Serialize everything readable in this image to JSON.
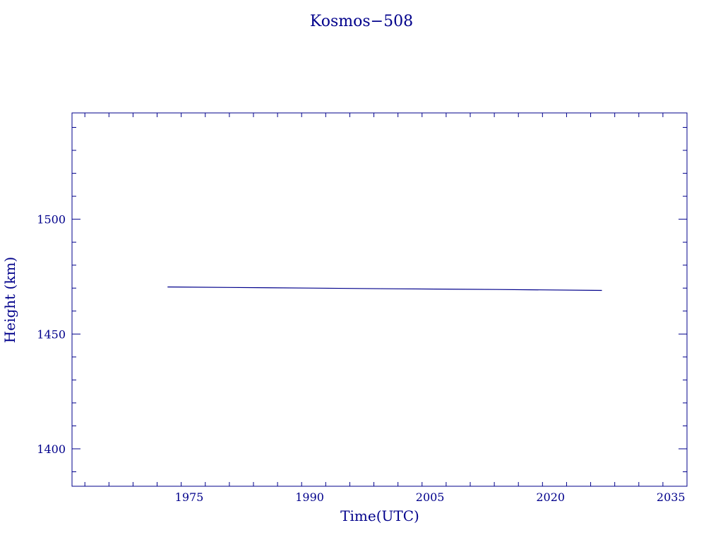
{
  "chart_data": {
    "type": "line",
    "title": "Kosmos−508",
    "xlabel": "Time(UTC)",
    "ylabel": "Height (km)",
    "xlim": [
      1960.4,
      2037.0
    ],
    "ylim": [
      1383.7,
      1546.3
    ],
    "x_ticks": [
      1975,
      1990,
      2005,
      2020,
      2035
    ],
    "x_tick_labels": [
      "1975",
      "1990",
      "2005",
      "2020",
      "2035"
    ],
    "x_minor_step": 3,
    "y_ticks": [
      1400,
      1450,
      1500
    ],
    "y_tick_labels": [
      "1400",
      "1450",
      "1500"
    ],
    "y_minor_step": 10,
    "grid": false,
    "colors": {
      "axis": "#00008B",
      "series": "#00008B",
      "text": "#00008B"
    },
    "series": [
      {
        "x": [
          1972.3,
          1980.0,
          1989.9,
          2000.3,
          2013.4,
          2026.4
        ],
        "y": [
          1470.5,
          1470.3,
          1470.0,
          1469.7,
          1469.4,
          1469.0
        ]
      }
    ]
  }
}
